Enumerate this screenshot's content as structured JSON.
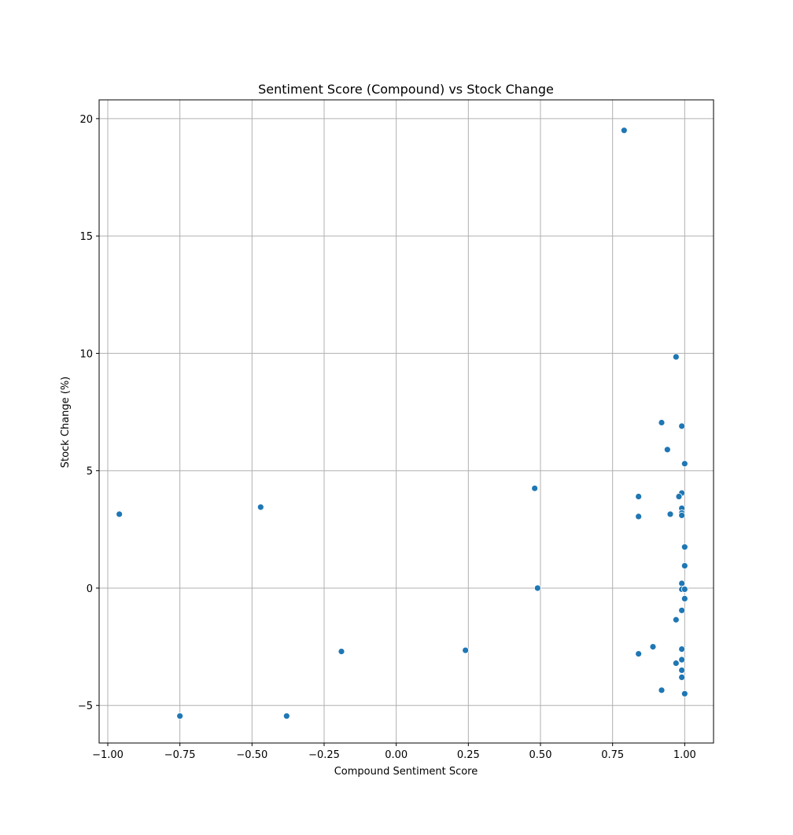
{
  "chart_data": {
    "type": "scatter",
    "title": "Sentiment Score (Compound) vs Stock Change",
    "xlabel": "Compound Sentiment Score",
    "ylabel": "Stock Change (%)",
    "xlim": [
      -1.03,
      1.1
    ],
    "ylim": [
      -6.6,
      20.8
    ],
    "grid": true,
    "marker_color": "#1f77b4",
    "marker_edge_color": "#ffffff",
    "xticks": [
      -1.0,
      -0.75,
      -0.5,
      -0.25,
      0.0,
      0.25,
      0.5,
      0.75,
      1.0
    ],
    "xtick_labels": [
      "−1.00",
      "−0.75",
      "−0.50",
      "−0.25",
      "0.00",
      "0.25",
      "0.50",
      "0.75",
      "1.00"
    ],
    "yticks": [
      -5,
      0,
      5,
      10,
      15,
      20
    ],
    "ytick_labels": [
      "−5",
      "0",
      "5",
      "10",
      "15",
      "20"
    ],
    "points": [
      {
        "x": 0.79,
        "y": 19.5
      },
      {
        "x": 0.97,
        "y": 9.85
      },
      {
        "x": 0.92,
        "y": 7.05
      },
      {
        "x": 0.99,
        "y": 6.9
      },
      {
        "x": 0.94,
        "y": 5.9
      },
      {
        "x": 1.0,
        "y": 5.3
      },
      {
        "x": 0.48,
        "y": 4.25
      },
      {
        "x": 0.99,
        "y": 4.05
      },
      {
        "x": 0.84,
        "y": 3.9
      },
      {
        "x": 0.98,
        "y": 3.9
      },
      {
        "x": -0.47,
        "y": 3.45
      },
      {
        "x": 0.99,
        "y": 3.4
      },
      {
        "x": -0.96,
        "y": 3.15
      },
      {
        "x": 0.95,
        "y": 3.15
      },
      {
        "x": 0.99,
        "y": 3.2
      },
      {
        "x": 0.99,
        "y": 3.1
      },
      {
        "x": 0.84,
        "y": 3.05
      },
      {
        "x": 1.0,
        "y": 1.75
      },
      {
        "x": 1.0,
        "y": 0.95
      },
      {
        "x": 0.99,
        "y": 0.2
      },
      {
        "x": 0.49,
        "y": 0.0
      },
      {
        "x": 0.99,
        "y": -0.05
      },
      {
        "x": 1.0,
        "y": -0.05
      },
      {
        "x": 1.0,
        "y": -0.45
      },
      {
        "x": 0.99,
        "y": -0.95
      },
      {
        "x": 0.97,
        "y": -1.35
      },
      {
        "x": 0.89,
        "y": -2.5
      },
      {
        "x": 0.99,
        "y": -2.6
      },
      {
        "x": 0.24,
        "y": -2.65
      },
      {
        "x": -0.19,
        "y": -2.7
      },
      {
        "x": 0.84,
        "y": -2.8
      },
      {
        "x": 0.99,
        "y": -3.05
      },
      {
        "x": 0.97,
        "y": -3.2
      },
      {
        "x": 0.99,
        "y": -3.5
      },
      {
        "x": 0.99,
        "y": -3.8
      },
      {
        "x": 0.92,
        "y": -4.35
      },
      {
        "x": 1.0,
        "y": -4.5
      },
      {
        "x": -0.75,
        "y": -5.45
      },
      {
        "x": -0.38,
        "y": -5.45
      }
    ]
  }
}
